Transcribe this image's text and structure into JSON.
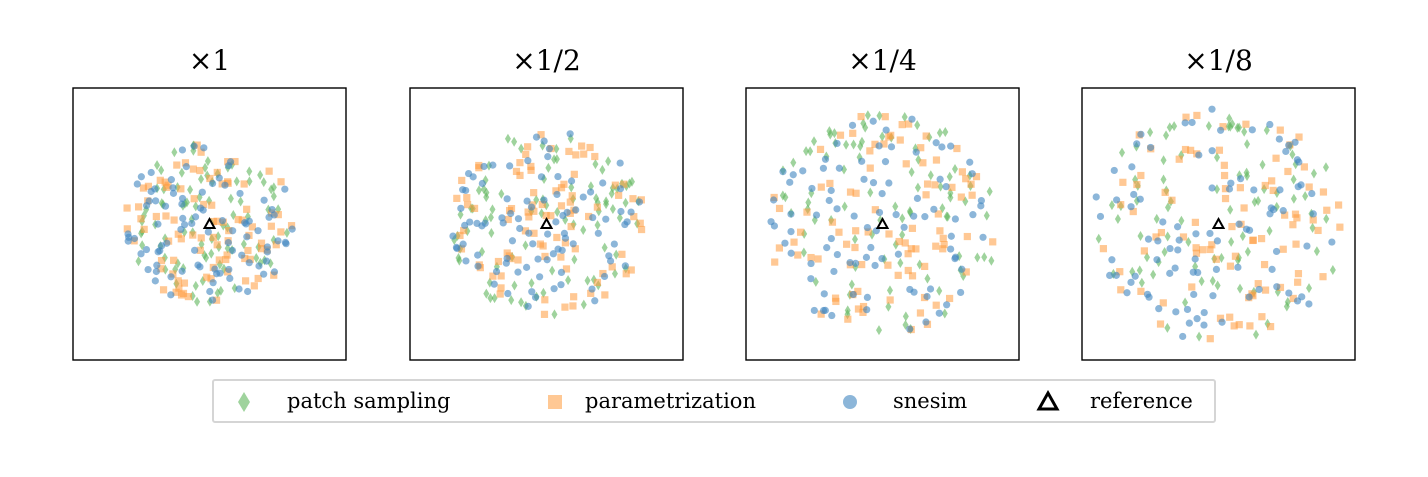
{
  "chart_data": {
    "type": "scatter",
    "panels": [
      {
        "title": "×1",
        "spread": 0.62,
        "offset": [
          0.0,
          0.0
        ],
        "seed": 11
      },
      {
        "title": "×1/2",
        "spread": 0.72,
        "offset": [
          0.0,
          0.0
        ],
        "seed": 23
      },
      {
        "title": "×1/4",
        "spread": 0.85,
        "offset": [
          0.0,
          0.0
        ],
        "seed": 37
      },
      {
        "title": "×1/8",
        "spread": 0.92,
        "offset": [
          0.0,
          0.0
        ],
        "seed": 53
      }
    ],
    "xlim": [
      -1,
      1
    ],
    "ylim": [
      -1,
      1
    ],
    "grid": false,
    "ticks": false,
    "points_per_series": 90,
    "reference": {
      "x": 0.0,
      "y": 0.0
    },
    "series": [
      {
        "name": "patch sampling",
        "marker": "diamond",
        "color": "#5fb65c",
        "alpha": 0.6
      },
      {
        "name": "parametrization",
        "marker": "square",
        "color": "#ff9a3c",
        "alpha": 0.55
      },
      {
        "name": "snesim",
        "marker": "circle",
        "color": "#3f86bf",
        "alpha": 0.6
      },
      {
        "name": "reference",
        "marker": "triangle",
        "color": "#000000",
        "alpha": 1.0
      }
    ],
    "legend_placement": "bottom-center"
  }
}
